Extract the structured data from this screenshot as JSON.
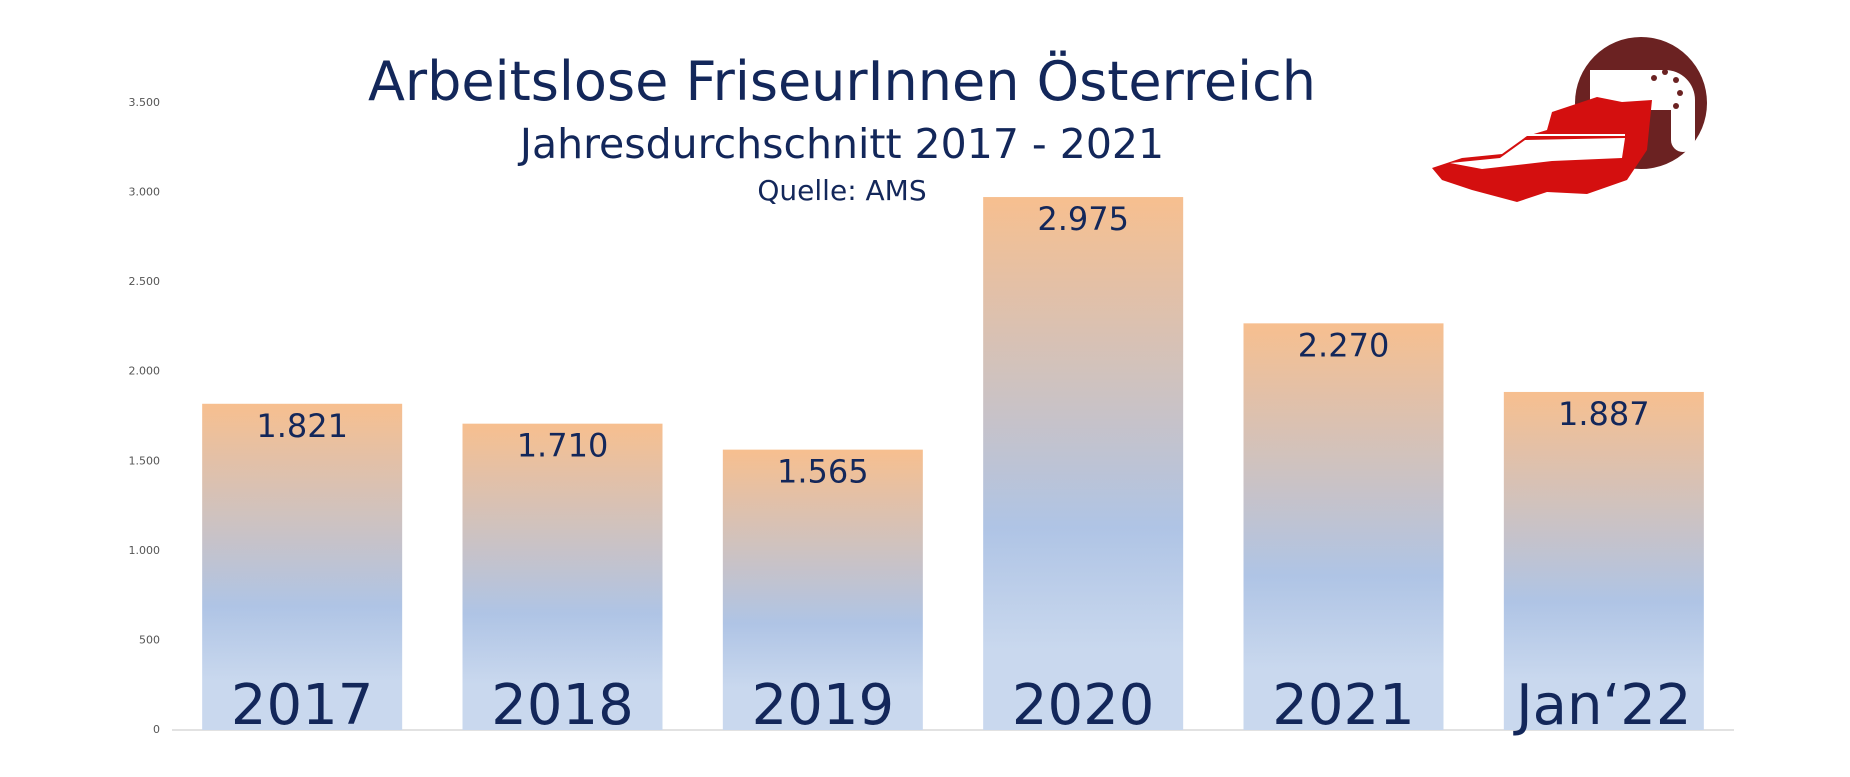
{
  "chart_data": {
    "type": "bar",
    "title": "Arbeitslose FriseurInnen Österreich",
    "subtitle": "Jahresdurchschnitt 2017 - 2021",
    "source": "Quelle: AMS",
    "categories": [
      "2017",
      "2018",
      "2019",
      "2020",
      "2021",
      "Jan‘22"
    ],
    "values": [
      1821,
      1710,
      1565,
      2975,
      2270,
      1887
    ],
    "value_labels": [
      "1.821",
      "1.710",
      "1.565",
      "2.975",
      "2.270",
      "1.887"
    ],
    "colors": [
      "#f7bf8f",
      "#afc4e5",
      "#c9d8ee"
    ],
    "ylim": [
      0,
      3500
    ],
    "yticks": [
      0,
      500,
      {
        "value": 1000,
        "label": "1.000"
      },
      {
        "value": 1500,
        "label": "1.500"
      },
      {
        "value": 2000,
        "label": "2.000"
      },
      {
        "value": 2500,
        "label": "2.500"
      },
      {
        "value": 3000,
        "label": "3.000"
      },
      {
        "value": 3500,
        "label": "3.500"
      }
    ],
    "grid": false
  }
}
